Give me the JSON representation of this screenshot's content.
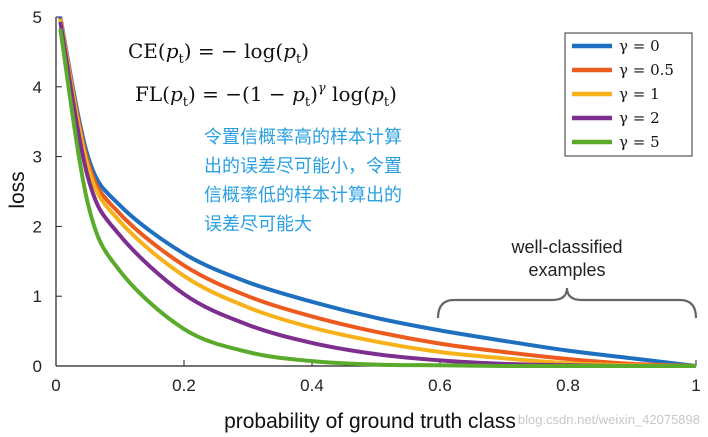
{
  "chart_data": {
    "type": "line",
    "xlabel": "probability of ground truth class",
    "ylabel": "loss",
    "xlim": [
      0,
      1
    ],
    "ylim": [
      0,
      5
    ],
    "xticks": [
      "0",
      "0.2",
      "0.4",
      "0.6",
      "0.8",
      "1"
    ],
    "yticks": [
      "0",
      "1",
      "2",
      "3",
      "4",
      "5"
    ],
    "legend_position": "top-right",
    "series": [
      {
        "name": "γ = 0",
        "gamma": 0,
        "color": "#1f6fc0",
        "x": [
          0.0067,
          0.05,
          0.1,
          0.2,
          0.3,
          0.4,
          0.5,
          0.6,
          0.7,
          0.8,
          0.9,
          1.0
        ],
        "y": [
          5.0,
          3.0,
          2.3,
          1.61,
          1.2,
          0.92,
          0.69,
          0.51,
          0.36,
          0.22,
          0.11,
          0.0
        ]
      },
      {
        "name": "γ = 0.5",
        "gamma": 0.5,
        "color": "#ec5a1e",
        "x": [
          0.0067,
          0.05,
          0.1,
          0.2,
          0.3,
          0.4,
          0.5,
          0.6,
          0.7,
          0.8,
          0.9,
          1.0
        ],
        "y": [
          4.98,
          2.92,
          2.18,
          1.44,
          1.0,
          0.71,
          0.49,
          0.32,
          0.2,
          0.1,
          0.03,
          0.0
        ]
      },
      {
        "name": "γ = 1",
        "gamma": 1,
        "color": "#f7b21b",
        "x": [
          0.0067,
          0.05,
          0.1,
          0.2,
          0.3,
          0.4,
          0.5,
          0.6,
          0.7,
          0.8,
          0.9,
          1.0
        ],
        "y": [
          4.97,
          2.85,
          2.07,
          1.29,
          0.84,
          0.55,
          0.35,
          0.2,
          0.11,
          0.04,
          0.01,
          0.0
        ]
      },
      {
        "name": "γ = 2",
        "gamma": 2,
        "color": "#7d2e8e",
        "x": [
          0.0067,
          0.05,
          0.1,
          0.2,
          0.3,
          0.4,
          0.5,
          0.6,
          0.7,
          0.8,
          0.9,
          1.0
        ],
        "y": [
          4.93,
          2.7,
          1.87,
          1.03,
          0.59,
          0.33,
          0.17,
          0.08,
          0.03,
          0.01,
          0.0,
          0.0
        ]
      },
      {
        "name": "γ = 5",
        "gamma": 5,
        "color": "#5aab2b",
        "x": [
          0.0067,
          0.05,
          0.1,
          0.2,
          0.3,
          0.4,
          0.5,
          0.6,
          0.7,
          0.8,
          0.9,
          1.0
        ],
        "y": [
          4.83,
          2.32,
          1.36,
          0.53,
          0.2,
          0.07,
          0.02,
          0.01,
          0.0,
          0.0,
          0.0,
          0.0
        ]
      }
    ],
    "annotations": {
      "formula_ce": "CE(pt) = − log(pt)",
      "formula_fl": "FL(pt) = −(1 − pt)^γ log(pt)",
      "cn_lines": [
        "令置信概率高的样本计算",
        "出的误差尽可能小，令置",
        "信概率低的样本计算出的",
        "误差尽可能大"
      ],
      "brace_label_lines": [
        "well-classified",
        "examples"
      ],
      "brace_range": [
        0.6,
        1.0
      ]
    },
    "watermark": "blog.csdn.net/weixin_42075898"
  }
}
